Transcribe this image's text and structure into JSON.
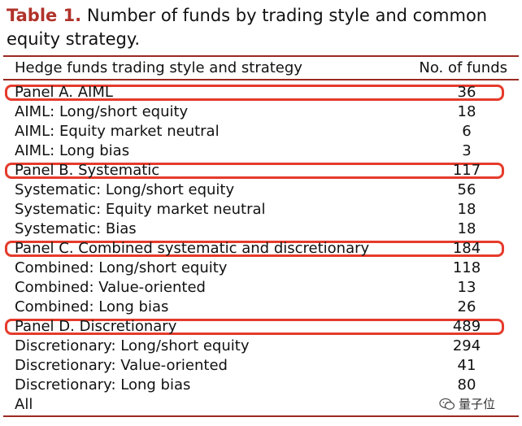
{
  "caption": {
    "label": "Table 1.",
    "text": "Number of funds by trading style and common equity strategy."
  },
  "table": {
    "headers": [
      "Hedge funds trading style and strategy",
      "No. of funds"
    ],
    "rows": [
      {
        "label": "Panel A. AIML",
        "value": "36",
        "panel": true
      },
      {
        "label": "AIML: Long/short equity",
        "value": "18",
        "panel": false
      },
      {
        "label": "AIML: Equity market neutral",
        "value": "6",
        "panel": false
      },
      {
        "label": "AIML: Long bias",
        "value": "3",
        "panel": false
      },
      {
        "label": "Panel B. Systematic",
        "value": "117",
        "panel": true
      },
      {
        "label": "Systematic: Long/short equity",
        "value": "56",
        "panel": false
      },
      {
        "label": "Systematic: Equity market neutral",
        "value": "18",
        "panel": false
      },
      {
        "label": "Systematic: Bias",
        "value": "18",
        "panel": false
      },
      {
        "label": "Panel C. Combined systematic and discretionary",
        "value": "184",
        "panel": true
      },
      {
        "label": "Combined: Long/short equity",
        "value": "118",
        "panel": false
      },
      {
        "label": "Combined: Value-oriented",
        "value": "13",
        "panel": false
      },
      {
        "label": "Combined: Long bias",
        "value": "26",
        "panel": false
      },
      {
        "label": "Panel D. Discretionary",
        "value": "489",
        "panel": true
      },
      {
        "label": "Discretionary: Long/short equity",
        "value": "294",
        "panel": false
      },
      {
        "label": "Discretionary: Value-oriented",
        "value": "41",
        "panel": false
      },
      {
        "label": "Discretionary: Long bias",
        "value": "80",
        "panel": false
      },
      {
        "label": "All",
        "value": "",
        "panel": false
      }
    ]
  },
  "watermark": {
    "text": "量子位",
    "icon": "wechat-logo-icon"
  },
  "colors": {
    "caption_label": "#b0322a",
    "rule": "#9a2a22",
    "highlight": "#e53b2c"
  }
}
